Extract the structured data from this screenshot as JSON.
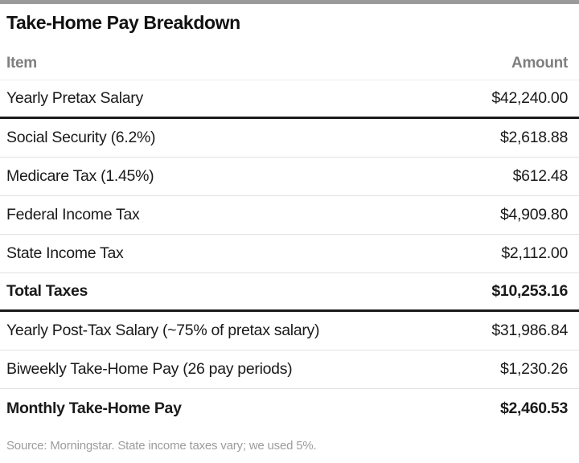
{
  "chart_data": {
    "type": "table",
    "title": "Take-Home Pay Breakdown",
    "columns": [
      "Item",
      "Amount"
    ],
    "rows": [
      {
        "item": "Yearly Pretax Salary",
        "amount": "$42,240.00",
        "emphasis": false
      },
      {
        "item": "Social Security (6.2%)",
        "amount": "$2,618.88",
        "emphasis": false
      },
      {
        "item": "Medicare Tax (1.45%)",
        "amount": "$612.48",
        "emphasis": false
      },
      {
        "item": "Federal Income Tax",
        "amount": "$4,909.80",
        "emphasis": false
      },
      {
        "item": "State Income Tax",
        "amount": "$2,112.00",
        "emphasis": false
      },
      {
        "item": "Total Taxes",
        "amount": "$10,253.16",
        "emphasis": true
      },
      {
        "item": "Yearly Post-Tax Salary (~75% of pretax salary)",
        "amount": "$31,986.84",
        "emphasis": false
      },
      {
        "item": "Biweekly Take-Home Pay (26 pay periods)",
        "amount": "$1,230.26",
        "emphasis": false
      },
      {
        "item": "Monthly Take-Home Pay",
        "amount": "$2,460.53",
        "emphasis": true
      }
    ],
    "source": "Source: Morningstar. State income taxes vary; we used 5%.",
    "values_numeric": {
      "yearly_pretax_salary": 42240.0,
      "social_security": 2618.88,
      "medicare_tax": 612.48,
      "federal_income_tax": 4909.8,
      "state_income_tax": 2112.0,
      "total_taxes": 10253.16,
      "yearly_post_tax_salary": 31986.84,
      "biweekly_take_home_pay": 1230.26,
      "monthly_take_home_pay": 2460.53
    }
  },
  "colors": {
    "text": "#1a1a1a",
    "column_header_gray": "#7f7f7f",
    "source_gray": "#9c9c9c",
    "separator_light": "#e2e2e2",
    "separator_thick": "#1a1a1a",
    "top_bar_gray": "#9a9a9a"
  }
}
